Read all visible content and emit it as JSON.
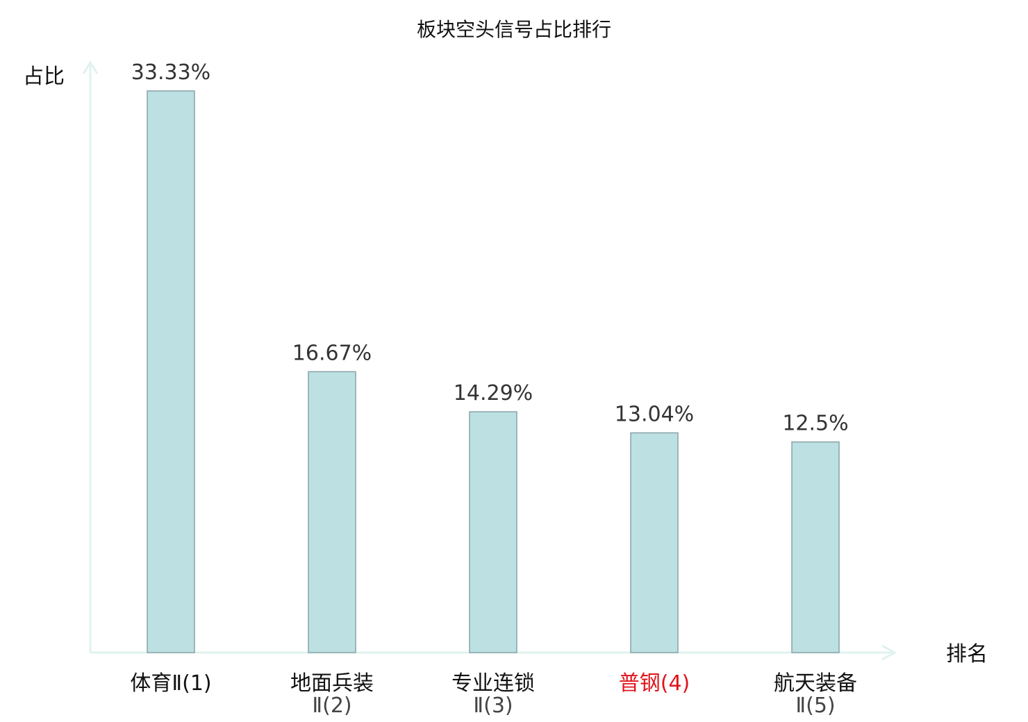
{
  "chart_data": {
    "type": "bar",
    "title": "板块空头信号占比排行",
    "ylabel": "占比",
    "xlabel": "排名",
    "categories": [
      "体育Ⅱ(1)",
      "地面兵装Ⅱ(2)",
      "专业连锁Ⅱ(3)",
      "普钢(4)",
      "航天装备Ⅱ(5)"
    ],
    "category_lines": [
      [
        "体育Ⅱ(1)"
      ],
      [
        "地面兵装",
        "Ⅱ(2)"
      ],
      [
        "专业连锁",
        "Ⅱ(3)"
      ],
      [
        "普钢(4)"
      ],
      [
        "航天装备",
        "Ⅱ(5)"
      ]
    ],
    "values": [
      33.33,
      16.67,
      14.29,
      13.04,
      12.5
    ],
    "value_labels": [
      "33.33%",
      "16.67%",
      "14.29%",
      "13.04%",
      "12.5%"
    ],
    "highlight_index": 3,
    "ylim": [
      0,
      33.33
    ],
    "grid": false,
    "colors": {
      "bar_fill": "#bde0e2",
      "bar_stroke": "#87a3a6",
      "axis": "#e0f2ef",
      "highlight_text": "#e0141b",
      "text": "#111111"
    }
  }
}
